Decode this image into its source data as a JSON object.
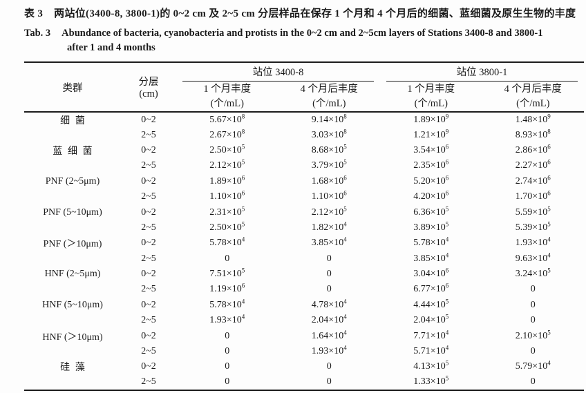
{
  "page": {
    "background": "#fdfdfd",
    "text_color": "#1b1b1b",
    "rule_color": "#1c1c1c"
  },
  "caption": {
    "zh_label": "表 3",
    "zh_text": "两站位(3400-8, 3800-1)的 0~2 cm 及 2~5 cm 分层样品在保存 1 个月和 4 个月后的细菌、蓝细菌及原生生物的丰度",
    "en_label": "Tab. 3",
    "en_text": "Abundance of bacteria, cyanobacteria and protists in the 0~2 cm and 2~5cm layers of Stations 3400-8 and 3800-1",
    "en_text_cont": "after 1 and 4 months"
  },
  "table": {
    "headers": {
      "group": "类群",
      "layer_line1": "分层",
      "layer_line2": "(cm)",
      "station1": "站位 3400-8",
      "station2": "站位 3800-1",
      "one_month": "1 个月丰度",
      "four_month": "4 个月后丰度",
      "unit": "(个/mL)"
    },
    "groups": [
      {
        "name": "细菌",
        "rows": [
          {
            "layer": "0~2",
            "values": [
              "5.67×10^8",
              "9.14×10^8",
              "1.89×10^9",
              "1.48×10^9"
            ]
          },
          {
            "layer": "2~5",
            "values": [
              "2.67×10^8",
              "3.03×10^8",
              "1.21×10^9",
              "8.93×10^8"
            ]
          }
        ]
      },
      {
        "name": "蓝细菌",
        "rows": [
          {
            "layer": "0~2",
            "values": [
              "2.50×10^5",
              "8.68×10^5",
              "3.54×10^6",
              "2.86×10^6"
            ]
          },
          {
            "layer": "2~5",
            "values": [
              "2.12×10^5",
              "3.79×10^5",
              "2.35×10^6",
              "2.27×10^6"
            ]
          }
        ]
      },
      {
        "name": "PNF (2~5μm)",
        "rows": [
          {
            "layer": "0~2",
            "values": [
              "1.89×10^6",
              "1.68×10^6",
              "5.20×10^6",
              "2.74×10^6"
            ]
          },
          {
            "layer": "2~5",
            "values": [
              "1.10×10^6",
              "1.10×10^6",
              "4.20×10^6",
              "1.70×10^6"
            ]
          }
        ]
      },
      {
        "name": "PNF (5~10μm)",
        "rows": [
          {
            "layer": "0~2",
            "values": [
              "2.31×10^5",
              "2.12×10^5",
              "6.36×10^5",
              "5.59×10^5"
            ]
          },
          {
            "layer": "2~5",
            "values": [
              "2.50×10^5",
              "1.82×10^4",
              "3.89×10^5",
              "5.39×10^5"
            ]
          }
        ]
      },
      {
        "name": "PNF (＞10μm)",
        "rows": [
          {
            "layer": "0~2",
            "values": [
              "5.78×10^4",
              "3.85×10^4",
              "5.78×10^4",
              "1.93×10^4"
            ]
          },
          {
            "layer": "2~5",
            "values": [
              "0",
              "0",
              "3.85×10^4",
              "9.63×10^4"
            ]
          }
        ]
      },
      {
        "name": "HNF (2~5μm)",
        "rows": [
          {
            "layer": "0~2",
            "values": [
              "7.51×10^5",
              "0",
              "3.04×10^6",
              "3.24×10^5"
            ]
          },
          {
            "layer": "2~5",
            "values": [
              "1.19×10^6",
              "0",
              "6.77×10^6",
              "0"
            ]
          }
        ]
      },
      {
        "name": "HNF (5~10μm)",
        "rows": [
          {
            "layer": "0~2",
            "values": [
              "5.78×10^4",
              "4.78×10^4",
              "4.44×10^5",
              "0"
            ]
          },
          {
            "layer": "2~5",
            "values": [
              "1.93×10^4",
              "2.04×10^4",
              "2.04×10^5",
              "0"
            ]
          }
        ]
      },
      {
        "name": "HNF (＞10μm)",
        "rows": [
          {
            "layer": "0~2",
            "values": [
              "0",
              "1.64×10^4",
              "7.71×10^4",
              "2.10×10^5"
            ]
          },
          {
            "layer": "2~5",
            "values": [
              "0",
              "1.93×10^4",
              "5.71×10^4",
              "0"
            ]
          }
        ]
      },
      {
        "name": "硅藻",
        "rows": [
          {
            "layer": "0~2",
            "values": [
              "0",
              "0",
              "4.13×10^5",
              "5.79×10^4"
            ]
          },
          {
            "layer": "2~5",
            "values": [
              "0",
              "0",
              "1.33×10^5",
              "0"
            ]
          }
        ]
      }
    ]
  }
}
